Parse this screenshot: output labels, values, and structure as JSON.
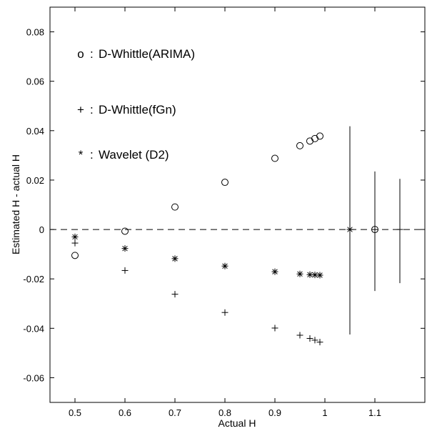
{
  "chart_data": {
    "type": "scatter",
    "xlabel": "Actual H",
    "ylabel": "Estimated H - actual H",
    "xlim": [
      0.45,
      1.2
    ],
    "ylim": [
      -0.07,
      0.09
    ],
    "xticks": [
      0.5,
      0.6,
      0.7,
      0.8,
      0.9,
      1.0,
      1.1
    ],
    "xtick_labels": [
      "0.5",
      "0.6",
      "0.7",
      "0.8",
      "0.9",
      "1",
      "1.1"
    ],
    "yticks": [
      -0.06,
      -0.04,
      -0.02,
      0,
      0.02,
      0.04,
      0.06,
      0.08
    ],
    "ytick_labels": [
      "-0.06",
      "-0.04",
      "-0.02",
      "0",
      "0.02",
      "0.04",
      "0.06",
      "0.08"
    ],
    "grid": false,
    "reference_line": {
      "y": 0,
      "style": "dashed"
    },
    "legend_position": "top-left, inside plot",
    "legend": [
      {
        "marker": "circle",
        "symbol": "o",
        "label": "D-Whittle(ARIMA)"
      },
      {
        "marker": "plus",
        "symbol": "+",
        "label": "D-Whittle(fGn)"
      },
      {
        "marker": "star",
        "symbol": "*",
        "label": "Wavelet (D2)"
      }
    ],
    "series": [
      {
        "name": "D-Whittle(ARIMA)",
        "marker": "circle",
        "x": [
          0.5,
          0.6,
          0.7,
          0.8,
          0.9,
          0.95,
          0.97,
          0.98,
          0.99
        ],
        "y": [
          -0.0105,
          -0.0007,
          0.0091,
          0.0191,
          0.0288,
          0.0339,
          0.0358,
          0.0368,
          0.0378
        ]
      },
      {
        "name": "D-Whittle(fGn)",
        "marker": "plus",
        "x": [
          0.5,
          0.6,
          0.7,
          0.8,
          0.9,
          0.95,
          0.97,
          0.98,
          0.99
        ],
        "y": [
          -0.0055,
          -0.0166,
          -0.0262,
          -0.0336,
          -0.0399,
          -0.0428,
          -0.0441,
          -0.0448,
          -0.0456
        ]
      },
      {
        "name": "Wavelet (D2)",
        "marker": "star",
        "x": [
          0.5,
          0.6,
          0.7,
          0.8,
          0.9,
          0.95,
          0.97,
          0.98,
          0.99
        ],
        "y": [
          -0.003,
          -0.0077,
          -0.0118,
          -0.0148,
          -0.0171,
          -0.018,
          -0.0183,
          -0.0184,
          -0.0185
        ]
      }
    ],
    "error_bars": [
      {
        "marker": "star",
        "x": 1.05,
        "y": 0,
        "ymin": -0.0425,
        "ymax": 0.0418
      },
      {
        "marker": "circle",
        "x": 1.1,
        "y": 0,
        "ymin": -0.0249,
        "ymax": 0.0235
      },
      {
        "marker": "dash",
        "x": 1.15,
        "y": 0,
        "ymin": -0.0217,
        "ymax": 0.0205
      }
    ]
  }
}
